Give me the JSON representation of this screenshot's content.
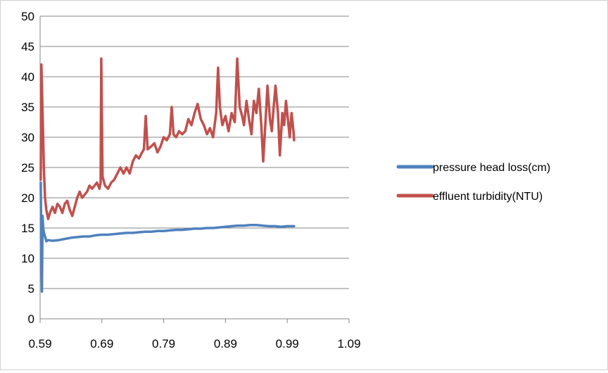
{
  "chart_data": {
    "type": "line",
    "title": "",
    "xlabel": "",
    "ylabel": "",
    "xlim": [
      0.59,
      1.09
    ],
    "ylim": [
      0,
      50
    ],
    "x_ticks": [
      "0.59",
      "0.69",
      "0.79",
      "0.89",
      "0.99",
      "1.09"
    ],
    "y_ticks": [
      "0",
      "5",
      "10",
      "15",
      "20",
      "25",
      "30",
      "35",
      "40",
      "45",
      "50"
    ],
    "grid": "horizontal",
    "legend_position": "right",
    "series": [
      {
        "name": "pressure head loss(cm)",
        "color": "#4f81bd",
        "points": [
          [
            0.591,
            22.5
          ],
          [
            0.592,
            10
          ],
          [
            0.593,
            4.5
          ],
          [
            0.594,
            17
          ],
          [
            0.595,
            15
          ],
          [
            0.596,
            14.3
          ],
          [
            0.598,
            13.6
          ],
          [
            0.6,
            12.8
          ],
          [
            0.603,
            13
          ],
          [
            0.61,
            12.9
          ],
          [
            0.62,
            13
          ],
          [
            0.63,
            13.2
          ],
          [
            0.64,
            13.4
          ],
          [
            0.65,
            13.5
          ],
          [
            0.66,
            13.6
          ],
          [
            0.67,
            13.6
          ],
          [
            0.68,
            13.8
          ],
          [
            0.69,
            13.9
          ],
          [
            0.7,
            13.9
          ],
          [
            0.71,
            14
          ],
          [
            0.72,
            14.1
          ],
          [
            0.73,
            14.2
          ],
          [
            0.74,
            14.2
          ],
          [
            0.75,
            14.3
          ],
          [
            0.76,
            14.4
          ],
          [
            0.77,
            14.4
          ],
          [
            0.78,
            14.5
          ],
          [
            0.79,
            14.5
          ],
          [
            0.8,
            14.6
          ],
          [
            0.81,
            14.7
          ],
          [
            0.82,
            14.7
          ],
          [
            0.83,
            14.8
          ],
          [
            0.84,
            14.9
          ],
          [
            0.85,
            14.9
          ],
          [
            0.86,
            15
          ],
          [
            0.87,
            15
          ],
          [
            0.88,
            15.1
          ],
          [
            0.89,
            15.2
          ],
          [
            0.9,
            15.3
          ],
          [
            0.91,
            15.4
          ],
          [
            0.92,
            15.4
          ],
          [
            0.93,
            15.5
          ],
          [
            0.94,
            15.5
          ],
          [
            0.95,
            15.4
          ],
          [
            0.96,
            15.3
          ],
          [
            0.97,
            15.3
          ],
          [
            0.98,
            15.2
          ],
          [
            0.99,
            15.3
          ],
          [
            1.0,
            15.3
          ],
          [
            1.001,
            15.3
          ]
        ]
      },
      {
        "name": "effluent turbidity(NTU)",
        "color": "#c0504d",
        "points": [
          [
            0.591,
            23
          ],
          [
            0.592,
            42
          ],
          [
            0.594,
            34
          ],
          [
            0.596,
            25
          ],
          [
            0.598,
            20
          ],
          [
            0.6,
            18
          ],
          [
            0.603,
            16.5
          ],
          [
            0.606,
            17.5
          ],
          [
            0.61,
            18.5
          ],
          [
            0.614,
            17.5
          ],
          [
            0.618,
            19
          ],
          [
            0.622,
            18.5
          ],
          [
            0.626,
            17.5
          ],
          [
            0.63,
            19
          ],
          [
            0.634,
            19.5
          ],
          [
            0.638,
            18
          ],
          [
            0.642,
            17
          ],
          [
            0.646,
            18.5
          ],
          [
            0.65,
            20
          ],
          [
            0.654,
            21
          ],
          [
            0.658,
            20
          ],
          [
            0.662,
            20.5
          ],
          [
            0.666,
            21
          ],
          [
            0.67,
            22
          ],
          [
            0.674,
            21.5
          ],
          [
            0.678,
            22
          ],
          [
            0.682,
            22.5
          ],
          [
            0.686,
            21.5
          ],
          [
            0.688,
            22.5
          ],
          [
            0.689,
            43
          ],
          [
            0.691,
            23.5
          ],
          [
            0.695,
            22
          ],
          [
            0.7,
            21.5
          ],
          [
            0.705,
            22.5
          ],
          [
            0.71,
            23
          ],
          [
            0.715,
            24
          ],
          [
            0.72,
            25
          ],
          [
            0.725,
            24
          ],
          [
            0.73,
            25
          ],
          [
            0.735,
            24
          ],
          [
            0.74,
            26
          ],
          [
            0.745,
            27
          ],
          [
            0.75,
            26.5
          ],
          [
            0.755,
            27.5
          ],
          [
            0.758,
            28
          ],
          [
            0.761,
            33.5
          ],
          [
            0.764,
            28
          ],
          [
            0.77,
            28.5
          ],
          [
            0.775,
            29
          ],
          [
            0.78,
            27.5
          ],
          [
            0.785,
            28.5
          ],
          [
            0.79,
            30
          ],
          [
            0.795,
            29.5
          ],
          [
            0.8,
            30.5
          ],
          [
            0.803,
            35
          ],
          [
            0.806,
            30.5
          ],
          [
            0.81,
            30
          ],
          [
            0.815,
            31
          ],
          [
            0.82,
            30.5
          ],
          [
            0.825,
            31
          ],
          [
            0.83,
            33
          ],
          [
            0.835,
            32
          ],
          [
            0.84,
            34
          ],
          [
            0.845,
            35.5
          ],
          [
            0.85,
            33
          ],
          [
            0.855,
            32
          ],
          [
            0.86,
            30.5
          ],
          [
            0.865,
            31.5
          ],
          [
            0.87,
            30
          ],
          [
            0.875,
            34
          ],
          [
            0.878,
            41.5
          ],
          [
            0.881,
            35
          ],
          [
            0.885,
            32
          ],
          [
            0.89,
            33.5
          ],
          [
            0.895,
            31
          ],
          [
            0.9,
            34
          ],
          [
            0.905,
            32.5
          ],
          [
            0.909,
            43
          ],
          [
            0.913,
            35
          ],
          [
            0.917,
            33.5
          ],
          [
            0.92,
            32
          ],
          [
            0.924,
            36
          ],
          [
            0.928,
            33
          ],
          [
            0.932,
            30.5
          ],
          [
            0.936,
            36
          ],
          [
            0.94,
            34
          ],
          [
            0.944,
            38
          ],
          [
            0.948,
            32
          ],
          [
            0.951,
            26
          ],
          [
            0.955,
            33
          ],
          [
            0.958,
            38.5
          ],
          [
            0.962,
            33
          ],
          [
            0.965,
            31
          ],
          [
            0.968,
            35
          ],
          [
            0.971,
            38.5
          ],
          [
            0.975,
            34
          ],
          [
            0.978,
            27
          ],
          [
            0.982,
            34
          ],
          [
            0.985,
            32
          ],
          [
            0.988,
            36
          ],
          [
            0.991,
            33
          ],
          [
            0.994,
            30
          ],
          [
            0.997,
            34
          ],
          [
            1.0,
            31
          ],
          [
            1.001,
            29.5
          ]
        ]
      }
    ]
  }
}
